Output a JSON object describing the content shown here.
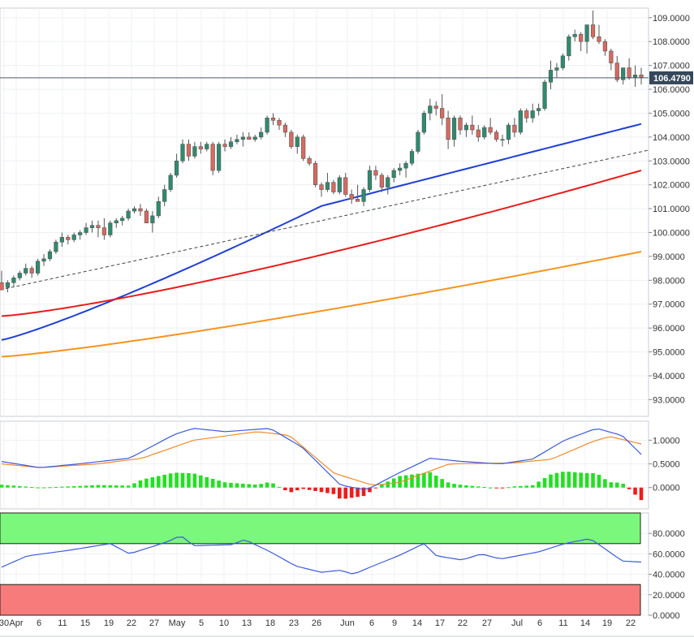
{
  "chart_data": [
    {
      "type": "candlestick",
      "title": "",
      "ylim": [
        92.3,
        109.4
      ],
      "yticks": [
        "93.0000",
        "94.0000",
        "95.0000",
        "96.0000",
        "97.0000",
        "98.0000",
        "99.0000",
        "100.0000",
        "101.0000",
        "102.0000",
        "103.0000",
        "104.0000",
        "105.0000",
        "106.0000",
        "107.0000",
        "108.0000",
        "109.0000"
      ],
      "yticks_values": [
        93,
        94,
        95,
        96,
        97,
        98,
        99,
        100,
        101,
        102,
        103,
        104,
        105,
        106,
        107,
        108,
        109
      ],
      "last_price": 106.479,
      "last_price_label": "106.4790",
      "colors": {
        "up": "#2e8b6f",
        "down": "#d9695f",
        "sma20": "#1f3fd6",
        "sma55": "#e81c1c",
        "sma200": "#f5941d",
        "trend": "#444444",
        "price_line": "#4a5a6a"
      },
      "candles": [
        [
          97.9,
          98.4,
          97.6,
          97.6
        ],
        [
          97.7,
          98.0,
          97.5,
          97.9
        ],
        [
          97.9,
          98.2,
          97.7,
          98.1
        ],
        [
          98.1,
          98.4,
          98.0,
          98.3
        ],
        [
          98.3,
          98.7,
          98.2,
          98.5
        ],
        [
          98.5,
          98.6,
          98.1,
          98.3
        ],
        [
          98.3,
          98.9,
          98.2,
          98.8
        ],
        [
          98.8,
          99.1,
          98.6,
          98.9
        ],
        [
          98.9,
          99.3,
          98.8,
          99.2
        ],
        [
          99.2,
          99.7,
          99.1,
          99.6
        ],
        [
          99.6,
          100.0,
          99.4,
          99.8
        ],
        [
          99.8,
          99.9,
          99.5,
          99.7
        ],
        [
          99.7,
          100.0,
          99.6,
          99.9
        ],
        [
          99.9,
          100.1,
          99.7,
          100.0
        ],
        [
          100.0,
          100.4,
          99.9,
          100.2
        ],
        [
          100.2,
          100.5,
          100.0,
          100.3
        ],
        [
          100.3,
          100.5,
          99.8,
          100.2
        ],
        [
          100.2,
          100.6,
          99.7,
          99.9
        ],
        [
          99.9,
          100.5,
          99.8,
          100.4
        ],
        [
          100.4,
          100.6,
          100.2,
          100.5
        ],
        [
          100.5,
          100.7,
          100.3,
          100.6
        ],
        [
          100.6,
          101.0,
          100.5,
          100.9
        ],
        [
          100.9,
          101.1,
          100.8,
          101.0
        ],
        [
          101.0,
          101.2,
          100.7,
          100.9
        ],
        [
          100.9,
          101.0,
          100.4,
          100.4
        ],
        [
          100.4,
          100.9,
          100.0,
          100.7
        ],
        [
          100.7,
          101.5,
          100.6,
          101.3
        ],
        [
          101.3,
          102.0,
          101.1,
          101.8
        ],
        [
          101.8,
          102.5,
          101.7,
          102.4
        ],
        [
          102.4,
          103.3,
          102.3,
          103.0
        ],
        [
          103.0,
          103.9,
          102.9,
          103.7
        ],
        [
          103.7,
          103.9,
          103.0,
          103.2
        ],
        [
          103.2,
          103.8,
          103.1,
          103.6
        ],
        [
          103.6,
          103.8,
          103.3,
          103.5
        ],
        [
          103.5,
          103.8,
          103.4,
          103.7
        ],
        [
          103.7,
          103.8,
          102.4,
          102.6
        ],
        [
          102.6,
          103.8,
          102.5,
          103.7
        ],
        [
          103.7,
          103.9,
          103.4,
          103.6
        ],
        [
          103.6,
          104.0,
          103.5,
          103.8
        ],
        [
          103.8,
          104.1,
          103.7,
          103.9
        ],
        [
          103.9,
          104.2,
          103.6,
          104.0
        ],
        [
          104.0,
          104.2,
          103.9,
          103.9
        ],
        [
          103.9,
          104.1,
          103.8,
          104.0
        ],
        [
          104.0,
          104.4,
          103.9,
          104.2
        ],
        [
          104.2,
          104.9,
          104.1,
          104.8
        ],
        [
          104.8,
          105.0,
          104.5,
          104.7
        ],
        [
          104.7,
          104.8,
          104.3,
          104.5
        ],
        [
          104.5,
          104.6,
          104.0,
          104.2
        ],
        [
          104.2,
          104.3,
          103.5,
          103.6
        ],
        [
          103.6,
          104.1,
          103.3,
          104.0
        ],
        [
          104.0,
          104.1,
          103.0,
          103.1
        ],
        [
          103.1,
          103.2,
          102.8,
          102.9
        ],
        [
          102.9,
          103.0,
          101.9,
          102.0
        ],
        [
          102.0,
          102.1,
          101.5,
          101.8
        ],
        [
          101.8,
          102.5,
          101.7,
          102.1
        ],
        [
          102.1,
          102.2,
          101.6,
          101.7
        ],
        [
          101.7,
          102.4,
          101.6,
          102.3
        ],
        [
          102.3,
          102.5,
          101.5,
          101.6
        ],
        [
          101.6,
          101.8,
          101.2,
          101.4
        ],
        [
          101.4,
          102.0,
          101.3,
          101.3
        ],
        [
          101.3,
          101.9,
          101.1,
          101.8
        ],
        [
          101.8,
          102.8,
          101.7,
          102.6
        ],
        [
          102.6,
          102.8,
          102.2,
          102.4
        ],
        [
          102.4,
          102.5,
          101.7,
          101.9
        ],
        [
          101.9,
          102.4,
          101.6,
          102.3
        ],
        [
          102.3,
          102.7,
          102.1,
          102.6
        ],
        [
          102.6,
          102.9,
          102.4,
          102.7
        ],
        [
          102.7,
          103.0,
          102.3,
          102.9
        ],
        [
          102.9,
          103.5,
          102.8,
          103.4
        ],
        [
          103.4,
          104.3,
          103.3,
          104.2
        ],
        [
          104.2,
          105.1,
          104.1,
          105.0
        ],
        [
          105.0,
          105.6,
          104.7,
          105.3
        ],
        [
          105.3,
          105.5,
          104.9,
          105.2
        ],
        [
          105.2,
          105.8,
          104.5,
          104.8
        ],
        [
          104.8,
          105.1,
          103.5,
          103.9
        ],
        [
          103.9,
          104.9,
          103.6,
          104.8
        ],
        [
          104.8,
          104.9,
          104.1,
          104.3
        ],
        [
          104.3,
          104.6,
          104.0,
          104.5
        ],
        [
          104.5,
          104.9,
          104.1,
          104.3
        ],
        [
          104.3,
          104.5,
          103.8,
          104.0
        ],
        [
          104.0,
          104.5,
          103.9,
          104.4
        ],
        [
          104.4,
          104.8,
          104.1,
          104.2
        ],
        [
          104.2,
          104.3,
          103.8,
          103.9
        ],
        [
          103.9,
          104.1,
          103.6,
          103.9
        ],
        [
          103.9,
          104.6,
          103.7,
          104.5
        ],
        [
          104.5,
          104.8,
          104.0,
          104.2
        ],
        [
          104.2,
          105.2,
          104.1,
          105.1
        ],
        [
          105.1,
          105.2,
          104.6,
          104.8
        ],
        [
          104.8,
          105.4,
          104.6,
          105.1
        ],
        [
          105.1,
          105.4,
          104.9,
          105.2
        ],
        [
          105.2,
          106.4,
          105.1,
          106.3
        ],
        [
          106.3,
          107.2,
          106.0,
          106.8
        ],
        [
          106.8,
          107.1,
          106.5,
          106.9
        ],
        [
          106.9,
          107.5,
          106.8,
          107.4
        ],
        [
          107.4,
          108.3,
          107.2,
          108.2
        ],
        [
          108.2,
          108.5,
          108.0,
          108.3
        ],
        [
          108.3,
          108.4,
          107.6,
          108.0
        ],
        [
          108.0,
          108.7,
          107.5,
          108.7
        ],
        [
          108.7,
          109.3,
          108.1,
          108.2
        ],
        [
          108.2,
          108.7,
          107.9,
          108.0
        ],
        [
          108.0,
          108.1,
          107.4,
          107.6
        ],
        [
          107.6,
          107.7,
          106.8,
          107.1
        ],
        [
          107.1,
          107.4,
          106.3,
          106.4
        ],
        [
          106.4,
          106.9,
          106.2,
          106.9
        ],
        [
          106.9,
          107.3,
          106.4,
          106.5
        ],
        [
          106.5,
          107.0,
          106.1,
          106.6
        ],
        [
          106.6,
          106.9,
          106.2,
          106.5
        ]
      ],
      "series": [
        {
          "name": "",
          "role": "sma-fast",
          "start": 95.5,
          "values_at_end": 104.55
        },
        {
          "name": "",
          "role": "sma-mid",
          "start": 96.5,
          "values_at_end": 102.6
        },
        {
          "name": "",
          "role": "sma-slow",
          "start": 94.8,
          "values_at_end": 99.2
        }
      ],
      "trendline": {
        "from": 97.6,
        "to": 103.45
      }
    },
    {
      "type": "macd",
      "ylim": [
        -0.45,
        1.4
      ],
      "yticks": [
        "0.0000",
        "0.5000",
        "1.0000"
      ],
      "yticks_values": [
        0,
        0.5,
        1.0
      ]
    },
    {
      "type": "rsi",
      "ylim": [
        0,
        100
      ],
      "yticks": [
        "0.0000",
        "20.0000",
        "40.0000",
        "60.0000",
        "80.0000"
      ],
      "yticks_values": [
        0,
        20,
        40,
        60,
        80
      ],
      "overbought": 70,
      "oversold": 30,
      "colors": {
        "overbought_zone": "#7bf77b",
        "oversold_zone": "#f77b7b",
        "line": "#3b5bdb"
      }
    }
  ],
  "x_axis": {
    "labels": [
      "30",
      "Apr",
      "6",
      "11",
      "15",
      "19",
      "22",
      "27",
      "May",
      "5",
      "10",
      "13",
      "18",
      "23",
      "26",
      "Jun",
      "6",
      "9",
      "14",
      "17",
      "22",
      "27",
      "Jul",
      "6",
      "11",
      "14",
      "19",
      "22"
    ]
  }
}
